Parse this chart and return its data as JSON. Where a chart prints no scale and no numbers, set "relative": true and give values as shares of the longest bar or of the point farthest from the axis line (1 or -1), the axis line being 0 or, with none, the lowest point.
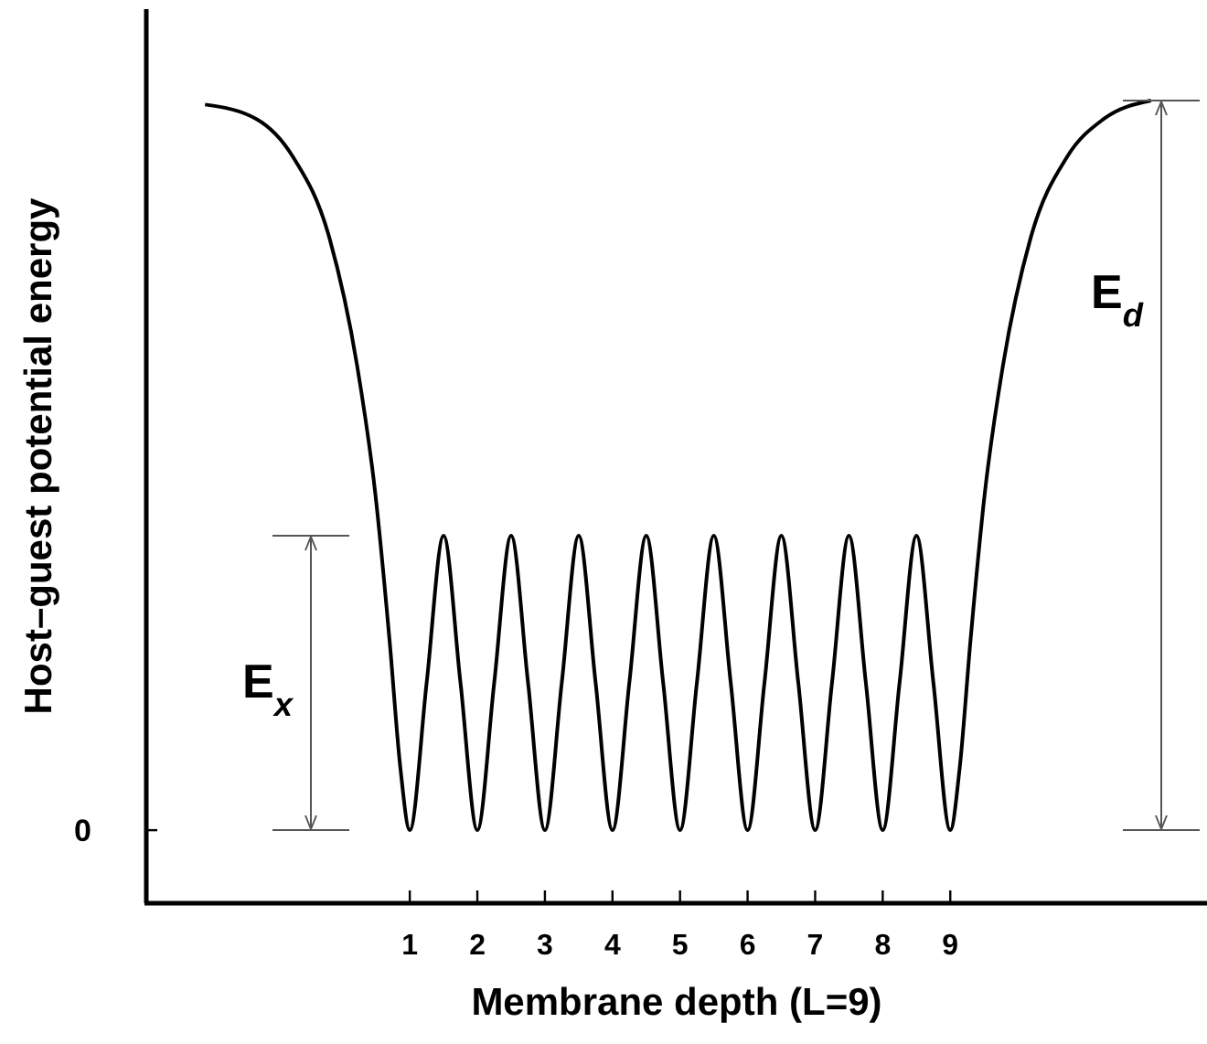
{
  "chart_data": {
    "type": "line",
    "relative": true,
    "xlabel": "Membrane depth  (L=9)",
    "ylabel": "Host–guest potential energy",
    "x": [
      -2.03,
      -1.27,
      -0.73,
      -0.19,
      0.22,
      0.49,
      0.7,
      0.86,
      1,
      1.25,
      1.5,
      1.75,
      2,
      2.25,
      2.5,
      2.75,
      3,
      3.25,
      3.5,
      3.75,
      4,
      4.25,
      4.5,
      4.75,
      5,
      5.25,
      5.5,
      5.75,
      6,
      6.25,
      6.5,
      6.75,
      7,
      7.25,
      7.5,
      7.75,
      8,
      8.25,
      8.5,
      8.75,
      9,
      9.14,
      9.3,
      9.51,
      9.78,
      10.19,
      10.73,
      11.27,
      11.97
    ],
    "values": [
      0.995,
      0.977,
      0.93,
      0.829,
      0.67,
      0.51,
      0.328,
      0.169,
      0.091,
      0.275,
      0.458,
      0.275,
      0.091,
      0.275,
      0.458,
      0.275,
      0.091,
      0.275,
      0.458,
      0.275,
      0.091,
      0.275,
      0.458,
      0.275,
      0.091,
      0.275,
      0.458,
      0.275,
      0.091,
      0.275,
      0.458,
      0.275,
      0.091,
      0.275,
      0.458,
      0.275,
      0.091,
      0.275,
      0.458,
      0.275,
      0.091,
      0.169,
      0.328,
      0.51,
      0.67,
      0.829,
      0.93,
      0.977,
      1
    ],
    "color": "#000000",
    "marker": "none",
    "line_style": "solid",
    "grid": false,
    "xlim": [
      -2.9,
      12.8
    ],
    "xticks": [
      1,
      2,
      3,
      4,
      5,
      6,
      7,
      8,
      9
    ],
    "annotations": [
      "0",
      "E$_{x}$",
      "E$_{d}$"
    ]
  }
}
